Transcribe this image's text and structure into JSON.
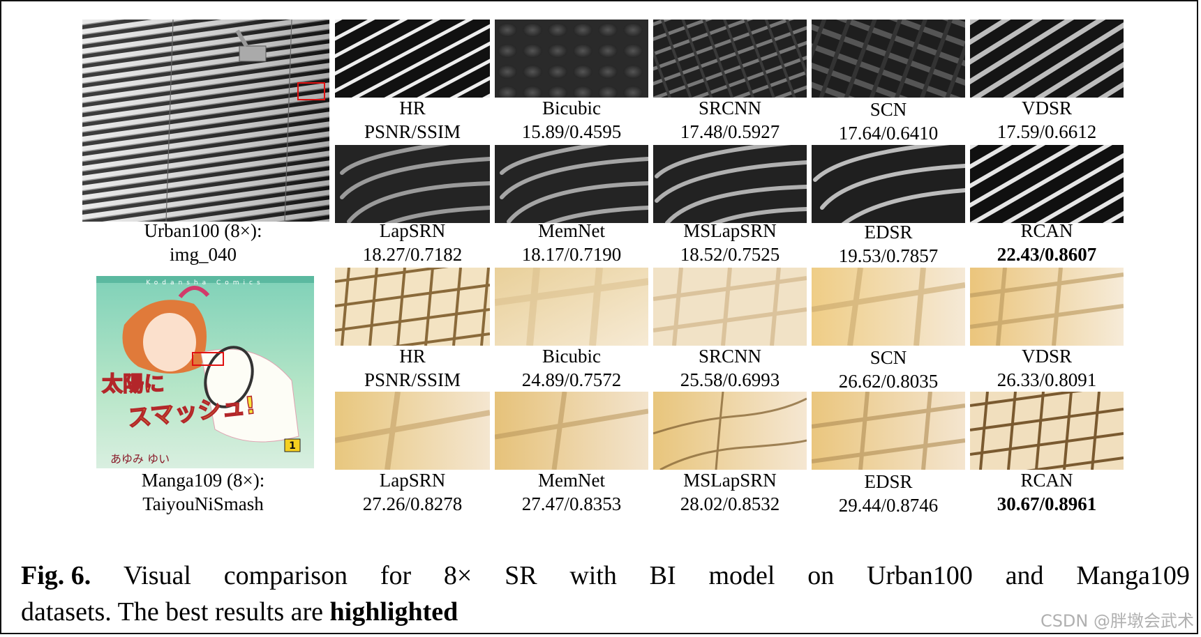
{
  "rows": [
    {
      "source_caption": [
        "Urban100 (8×):",
        "img_040"
      ],
      "crops": [
        {
          "method": "HR",
          "score": "PSNR/SSIM",
          "best": false
        },
        {
          "method": "Bicubic",
          "score": "15.89/0.4595",
          "best": false
        },
        {
          "method": "SRCNN",
          "score": "17.48/0.5927",
          "best": false
        },
        {
          "method": "SCN",
          "score": "17.64/0.6410",
          "best": false
        },
        {
          "method": "VDSR",
          "score": "17.59/0.6612",
          "best": false
        },
        {
          "method": "LapSRN",
          "score": "18.27/0.7182",
          "best": false
        },
        {
          "method": "MemNet",
          "score": "18.17/0.7190",
          "best": false
        },
        {
          "method": "MSLapSRN",
          "score": "18.52/0.7525",
          "best": false
        },
        {
          "method": "EDSR",
          "score": "19.53/0.7857",
          "best": false
        },
        {
          "method": "RCAN",
          "score": "22.43/0.8607",
          "best": true
        }
      ]
    },
    {
      "source_caption": [
        "Manga109 (8×):",
        "TaiyouNiSmash"
      ],
      "cover": {
        "series": "Kodansha Comics",
        "title_line1": "太陽に",
        "title_line2": "スマッシュ!",
        "volume": "1",
        "author": "あゆみ ゆい"
      },
      "crops": [
        {
          "method": "HR",
          "score": "PSNR/SSIM",
          "best": false
        },
        {
          "method": "Bicubic",
          "score": "24.89/0.7572",
          "best": false
        },
        {
          "method": "SRCNN",
          "score": "25.58/0.6993",
          "best": false
        },
        {
          "method": "SCN",
          "score": "26.62/0.8035",
          "best": false
        },
        {
          "method": "VDSR",
          "score": "26.33/0.8091",
          "best": false
        },
        {
          "method": "LapSRN",
          "score": "27.26/0.8278",
          "best": false
        },
        {
          "method": "MemNet",
          "score": "27.47/0.8353",
          "best": false
        },
        {
          "method": "MSLapSRN",
          "score": "28.02/0.8532",
          "best": false
        },
        {
          "method": "EDSR",
          "score": "29.44/0.8746",
          "best": false
        },
        {
          "method": "RCAN",
          "score": "30.67/0.8961",
          "best": true
        }
      ]
    }
  ],
  "caption": {
    "label": "Fig. 6.",
    "words_line1": [
      "Visual",
      "comparison",
      "for",
      "8×",
      "SR",
      "with",
      "BI",
      "model",
      "on",
      "Urban100",
      "and",
      "Manga109"
    ],
    "line2_text": "datasets. The best results are",
    "line2_bold": "highlighted"
  },
  "watermark": "CSDN @胖墩会武术"
}
